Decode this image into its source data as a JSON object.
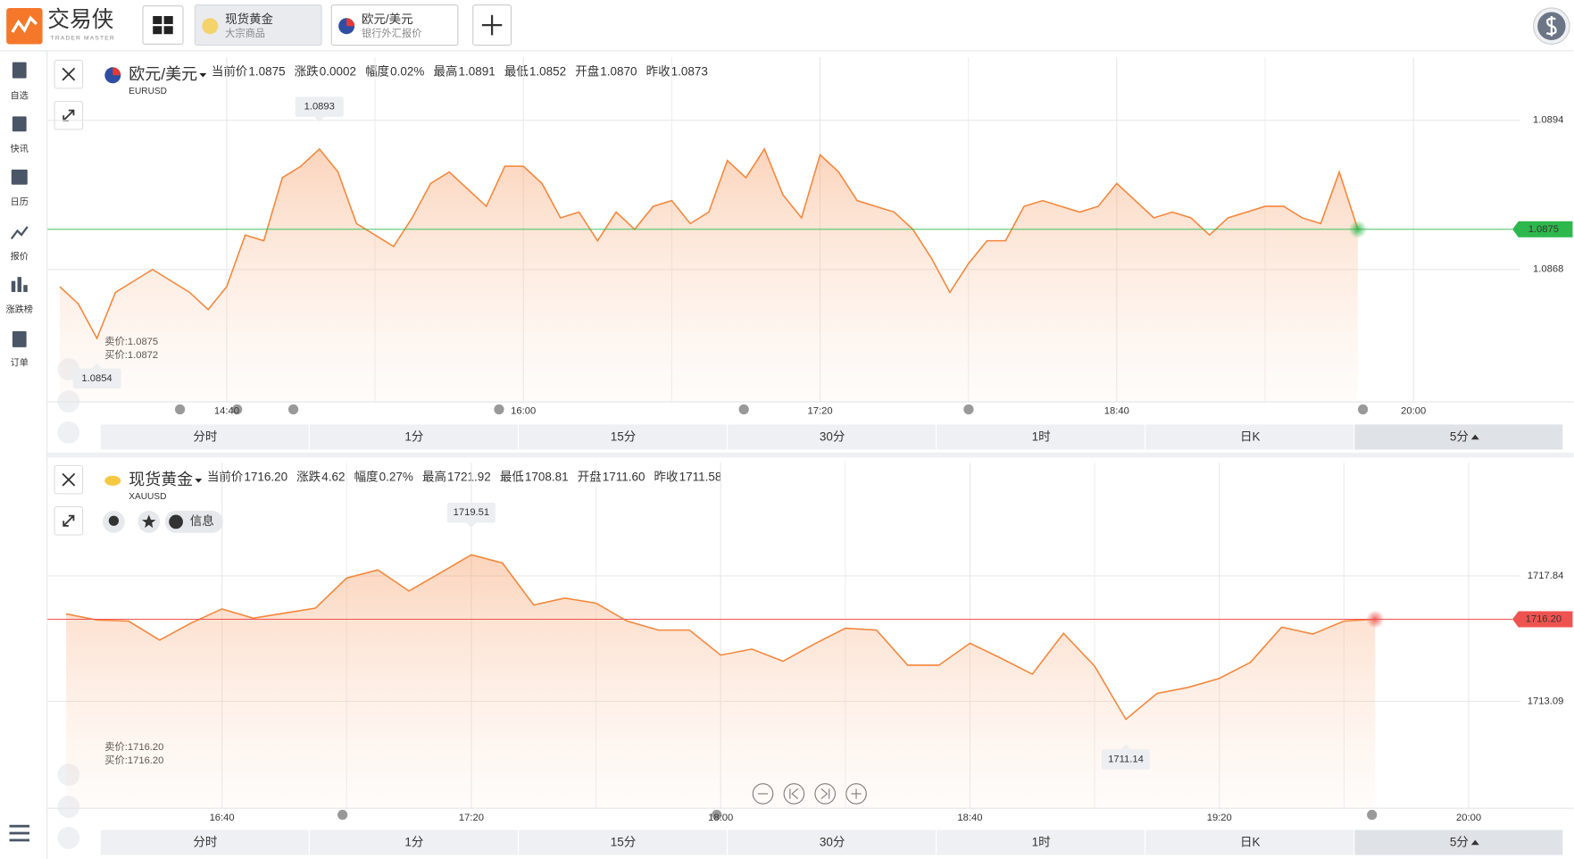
{
  "topbar": {
    "logo": "交易侠",
    "logo_sub": "TRADER MASTER",
    "tabs": [
      {
        "title": "现货黄金",
        "subtitle": "大宗商品"
      },
      {
        "title": "欧元/美元",
        "subtitle": "银行外汇报价"
      }
    ]
  },
  "sidebar": [
    "自选",
    "快讯",
    "日历",
    "报价",
    "涨跌榜",
    "订单"
  ],
  "panels": [
    {
      "name": "欧元/美元",
      "symbol": "EURUSD",
      "stats": [
        {
          "label": "当前价",
          "value": "1.0875"
        },
        {
          "label": "涨跌",
          "value": "0.0002"
        },
        {
          "label": "幅度",
          "value": "0.02%"
        },
        {
          "label": "最高",
          "value": "1.0891"
        },
        {
          "label": "最低",
          "value": "1.0852"
        },
        {
          "label": "开盘",
          "value": "1.0870"
        },
        {
          "label": "昨收",
          "value": "1.0873"
        }
      ],
      "bid_ask": [
        "卖价:1.0875",
        "买价:1.0872"
      ],
      "timeframes": [
        "分时",
        "1分",
        "15分",
        "30分",
        "1时",
        "日K",
        "5分"
      ]
    },
    {
      "name": "现货黄金",
      "symbol": "XAUUSD",
      "info_button": "信息",
      "stats": [
        {
          "label": "当前价",
          "value": "1716.20"
        },
        {
          "label": "涨跌",
          "value": "4.62"
        },
        {
          "label": "幅度",
          "value": "0.27%"
        },
        {
          "label": "最高",
          "value": "1721.92"
        },
        {
          "label": "最低",
          "value": "1708.81"
        },
        {
          "label": "开盘",
          "value": "1711.60"
        },
        {
          "label": "昨收",
          "value": "1711.58"
        }
      ],
      "bid_ask": [
        "卖价:1716.20",
        "买价:1716.20"
      ],
      "timeframes": [
        "分时",
        "1分",
        "15分",
        "30分",
        "1时",
        "日K",
        "5分"
      ]
    }
  ],
  "chart_data": [
    {
      "type": "line",
      "color": "#f5863a",
      "grid": true,
      "categories": [
        null,
        null,
        null,
        null,
        null,
        null,
        null,
        null,
        null,
        "14:40",
        null,
        null,
        null,
        null,
        null,
        null,
        null,
        null,
        null,
        null,
        null,
        null,
        null,
        null,
        null,
        "16:00",
        null,
        null,
        null,
        null,
        null,
        null,
        null,
        null,
        null,
        null,
        null,
        null,
        null,
        null,
        null,
        "17:20",
        null,
        null,
        null,
        null,
        null,
        null,
        null,
        null,
        null,
        null,
        null,
        null,
        null,
        null,
        null,
        "18:40",
        null,
        null,
        null,
        null,
        null,
        null,
        null,
        null,
        null,
        null,
        null,
        null,
        null,
        null,
        null,
        "20:00",
        null,
        null,
        null,
        null,
        null
      ],
      "values": [
        1.0865,
        1.0862,
        1.0856,
        1.0864,
        1.0866,
        1.0868,
        1.0866,
        1.0864,
        1.0861,
        1.0865,
        1.0874,
        1.0873,
        1.0884,
        1.0886,
        1.0889,
        1.0885,
        1.0876,
        1.0874,
        1.0872,
        1.0877,
        1.0883,
        1.0885,
        1.0882,
        1.0879,
        1.0886,
        1.0886,
        1.0883,
        1.0877,
        1.0878,
        1.0873,
        1.0878,
        1.0875,
        1.0879,
        1.088,
        1.0876,
        1.0878,
        1.0887,
        1.0884,
        1.0889,
        1.0881,
        1.0877,
        1.0888,
        1.0885,
        1.088,
        1.0879,
        1.0878,
        1.0875,
        1.087,
        1.0864,
        1.0869,
        1.0873,
        1.0873,
        1.0879,
        1.088,
        1.0879,
        1.0878,
        1.0879,
        1.0883,
        1.088,
        1.0877,
        1.0878,
        1.0877,
        1.0874,
        1.0877,
        1.0878,
        1.0879,
        1.0879,
        1.0877,
        1.0876,
        1.0885,
        1.0875,
        null,
        null,
        null,
        null,
        null,
        null,
        null,
        null
      ],
      "ylim": [
        1.0845,
        1.0905
      ],
      "yticks": [
        1.0894,
        1.0868
      ],
      "last_price": {
        "value": 1.0875,
        "label": "1.0875"
      },
      "last_price_color": "#2db84d",
      "max_label": "1.0893",
      "min_label": "1.0854"
    },
    {
      "type": "line",
      "color": "#f5863a",
      "grid": true,
      "categories": [
        null,
        null,
        null,
        null,
        null,
        "16:40",
        null,
        null,
        null,
        null,
        null,
        null,
        null,
        "17:20",
        null,
        null,
        null,
        null,
        null,
        null,
        null,
        "18:00",
        null,
        null,
        null,
        null,
        null,
        null,
        null,
        "18:40",
        null,
        null,
        null,
        null,
        null,
        null,
        null,
        "19:20",
        null,
        null,
        null,
        null,
        null,
        null,
        null,
        "20:00",
        null
      ],
      "values": [
        1716.4,
        1716.17,
        1716.13,
        1715.41,
        1716.05,
        1716.59,
        1716.24,
        1716.43,
        1716.62,
        1717.76,
        1718.07,
        1717.27,
        1717.95,
        1718.64,
        1718.33,
        1716.74,
        1717.0,
        1716.81,
        1716.13,
        1715.79,
        1715.79,
        1714.84,
        1715.07,
        1714.61,
        1715.26,
        1715.86,
        1715.79,
        1714.46,
        1714.46,
        1715.29,
        1714.72,
        1714.12,
        1715.67,
        1714.42,
        1712.41,
        1713.39,
        1713.62,
        1713.96,
        1714.57,
        1715.9,
        1715.64,
        1716.13,
        1716.2,
        null,
        null,
        null,
        null
      ],
      "ylim": [
        1709.06,
        1722.13
      ],
      "yticks": [
        1717.84,
        1713.09
      ],
      "last_price": {
        "value": 1716.2,
        "label": "1716.20"
      },
      "last_price_color": "#ef5350",
      "max_label": "1719.51",
      "min_label": "1711.14"
    }
  ]
}
